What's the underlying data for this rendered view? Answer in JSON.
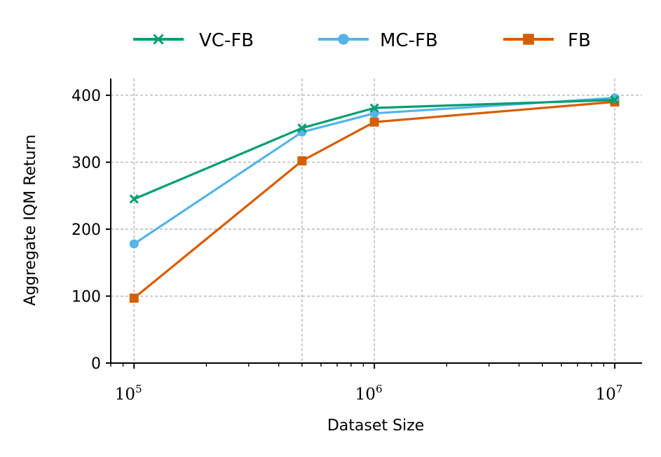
{
  "chart_data": {
    "type": "line",
    "title": "",
    "xlabel": "Dataset Size",
    "ylabel": "Aggregate IQM Return",
    "xscale": "log",
    "xlim": [
      80000,
      13000000
    ],
    "ylim": [
      0,
      425
    ],
    "yticks": [
      0,
      100,
      200,
      300,
      400
    ],
    "xticks": [
      {
        "value": 100000,
        "base": "10",
        "exp": "5"
      },
      {
        "value": 1000000,
        "base": "10",
        "exp": "6"
      },
      {
        "value": 10000000,
        "base": "10",
        "exp": "7"
      }
    ],
    "x_gridlines": [
      100000,
      500000,
      1000000,
      10000000
    ],
    "grid": true,
    "legend_position": "top-center",
    "x": [
      100000,
      500000,
      1000000,
      10000000
    ],
    "series": [
      {
        "name": "VC-FB",
        "color": "#009E73",
        "marker": "x",
        "values": [
          245,
          351,
          381,
          393
        ]
      },
      {
        "name": "MC-FB",
        "color": "#56B4E9",
        "marker": "circle",
        "values": [
          178,
          345,
          373,
          396
        ]
      },
      {
        "name": "FB",
        "color": "#D55E00",
        "marker": "square",
        "values": [
          97,
          302,
          360,
          390
        ]
      }
    ]
  }
}
